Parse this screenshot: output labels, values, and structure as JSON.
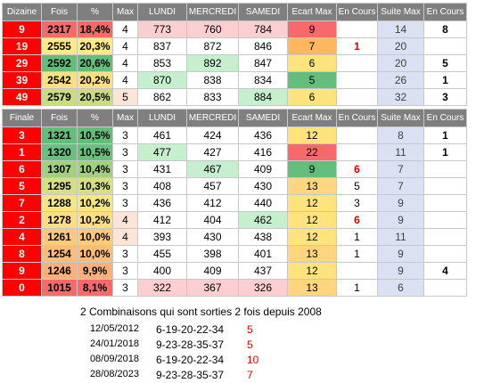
{
  "colors": {
    "key_red": "#ff0000",
    "suite_blue": "#d9e1f2",
    "header_grey": "#7f7f7f",
    "red_text": "#e00000"
  },
  "table1": {
    "headers": [
      "Dizaine",
      "Fois",
      "%",
      "Max",
      "LUNDI",
      "MERCREDI",
      "SAMEDI",
      "Ecart Max",
      "En Cours",
      "Suite Max",
      "En Cours"
    ],
    "rows": [
      {
        "key": "9",
        "fois": "2317",
        "pct": "18,4%",
        "max": "4",
        "lundi": "773",
        "mercredi": "760",
        "samedi": "784",
        "ecart": "9",
        "encours": "",
        "suite": "14",
        "encours2": "8",
        "bg": {
          "fois": "#f8696b",
          "pct": "#f8696b",
          "max": "#ffffff",
          "lundi": "#fbcfd0",
          "mercredi": "#fbcfd0",
          "samedi": "#fbcfd0",
          "ecart": "#f8696b"
        }
      },
      {
        "key": "19",
        "fois": "2555",
        "pct": "20,3%",
        "max": "4",
        "lundi": "837",
        "mercredi": "872",
        "samedi": "846",
        "ecart": "7",
        "encours": "1",
        "suite": "20",
        "encours2": "",
        "bg": {
          "fois": "#ffeb84",
          "pct": "#ffeb84",
          "max": "#ffffff",
          "lundi": "#ffffff",
          "mercredi": "#ffffff",
          "samedi": "#ffffff",
          "ecart": "#fdb85f"
        }
      },
      {
        "key": "29",
        "fois": "2592",
        "pct": "20,6%",
        "max": "4",
        "lundi": "853",
        "mercredi": "892",
        "samedi": "847",
        "ecart": "6",
        "encours": "",
        "suite": "20",
        "encours2": "5",
        "bg": {
          "fois": "#63be7b",
          "pct": "#63be7b",
          "max": "#ffffff",
          "lundi": "#ffffff",
          "mercredi": "#c6efce",
          "samedi": "#ffffff",
          "ecart": "#ffe47e"
        }
      },
      {
        "key": "39",
        "fois": "2542",
        "pct": "20,2%",
        "max": "4",
        "lundi": "870",
        "mercredi": "838",
        "samedi": "834",
        "ecart": "5",
        "encours": "",
        "suite": "26",
        "encours2": "1",
        "bg": {
          "fois": "#ffe081",
          "pct": "#ffe081",
          "max": "#ffffff",
          "lundi": "#c6efce",
          "mercredi": "#ffffff",
          "samedi": "#ffffff",
          "ecart": "#63be7b"
        }
      },
      {
        "key": "49",
        "fois": "2579",
        "pct": "20,5%",
        "max": "5",
        "lundi": "862",
        "mercredi": "833",
        "samedi": "884",
        "ecart": "6",
        "encours": "",
        "suite": "32",
        "encours2": "3",
        "bg": {
          "fois": "#c9dc81",
          "pct": "#c9dc81",
          "max": "#fce4d6",
          "lundi": "#ffffff",
          "mercredi": "#ffffff",
          "samedi": "#c6efce",
          "ecart": "#ffe47e"
        }
      }
    ]
  },
  "table2": {
    "headers": [
      "Finale",
      "Fois",
      "%",
      "Max",
      "LUNDI",
      "MERCREDI",
      "SAMEDI",
      "Ecart Max",
      "En Cours",
      "Suite Max",
      "En Cours"
    ],
    "rows": [
      {
        "key": "3",
        "fois": "1321",
        "pct": "10,5%",
        "max": "3",
        "lundi": "461",
        "mercredi": "424",
        "samedi": "436",
        "ecart": "12",
        "encours": "",
        "suite": "8",
        "encours2": "1",
        "bg": {
          "fois": "#63be7b",
          "pct": "#63be7b",
          "max": "#ffffff",
          "lundi": "#ffffff",
          "mercredi": "#ffffff",
          "samedi": "#ffffff",
          "ecart": "#ffe47e"
        }
      },
      {
        "key": "1",
        "fois": "1320",
        "pct": "10,5%",
        "max": "3",
        "lundi": "477",
        "mercredi": "427",
        "samedi": "416",
        "ecart": "22",
        "encours": "",
        "suite": "11",
        "encours2": "1",
        "bg": {
          "fois": "#6ac17d",
          "pct": "#6ac17d",
          "max": "#ffffff",
          "lundi": "#c6efce",
          "mercredi": "#ffffff",
          "samedi": "#ffffff",
          "ecart": "#f8696b"
        }
      },
      {
        "key": "6",
        "fois": "1307",
        "pct": "10,4%",
        "max": "3",
        "lundi": "431",
        "mercredi": "467",
        "samedi": "409",
        "ecart": "9",
        "encours": "6",
        "suite": "7",
        "encours2": "",
        "bg": {
          "fois": "#a1d07f",
          "pct": "#a1d07f",
          "max": "#ffffff",
          "lundi": "#ffffff",
          "mercredi": "#c6efce",
          "samedi": "#ffffff",
          "ecart": "#63be7b"
        }
      },
      {
        "key": "5",
        "fois": "1295",
        "pct": "10,3%",
        "max": "3",
        "lundi": "408",
        "mercredi": "457",
        "samedi": "430",
        "ecart": "13",
        "encours": "5",
        "suite": "7",
        "encours2": "",
        "bg": {
          "fois": "#d6df81",
          "pct": "#d6df81",
          "max": "#ffffff",
          "lundi": "#ffffff",
          "mercredi": "#ffffff",
          "samedi": "#ffffff",
          "ecart": "#ffd67f"
        }
      },
      {
        "key": "7",
        "fois": "1288",
        "pct": "10,2%",
        "max": "3",
        "lundi": "436",
        "mercredi": "412",
        "samedi": "440",
        "ecart": "12",
        "encours": "3",
        "suite": "9",
        "encours2": "",
        "bg": {
          "fois": "#f3e783",
          "pct": "#f3e783",
          "max": "#ffffff",
          "lundi": "#ffffff",
          "mercredi": "#ffffff",
          "samedi": "#ffffff",
          "ecart": "#ffe47e"
        }
      },
      {
        "key": "2",
        "fois": "1278",
        "pct": "10,2%",
        "max": "4",
        "lundi": "412",
        "mercredi": "404",
        "samedi": "462",
        "ecart": "12",
        "encours": "6",
        "suite": "9",
        "encours2": "",
        "bg": {
          "fois": "#fee082",
          "pct": "#fee082",
          "max": "#fce4d6",
          "lundi": "#ffffff",
          "mercredi": "#ffffff",
          "samedi": "#c6efce",
          "ecart": "#ffe47e"
        }
      },
      {
        "key": "4",
        "fois": "1261",
        "pct": "10,0%",
        "max": "4",
        "lundi": "393",
        "mercredi": "430",
        "samedi": "438",
        "ecart": "12",
        "encours": "1",
        "suite": "11",
        "encours2": "",
        "bg": {
          "fois": "#fdc97d",
          "pct": "#fdc97d",
          "max": "#fce4d6",
          "lundi": "#ffffff",
          "mercredi": "#ffffff",
          "samedi": "#ffffff",
          "ecart": "#ffe47e"
        }
      },
      {
        "key": "8",
        "fois": "1254",
        "pct": "10,0%",
        "max": "3",
        "lundi": "455",
        "mercredi": "398",
        "samedi": "401",
        "ecart": "13",
        "encours": "1",
        "suite": "9",
        "encours2": "",
        "bg": {
          "fois": "#fcbd7b",
          "pct": "#fcbd7b",
          "max": "#ffffff",
          "lundi": "#ffffff",
          "mercredi": "#ffffff",
          "samedi": "#ffffff",
          "ecart": "#ffd67f"
        }
      },
      {
        "key": "9",
        "fois": "1246",
        "pct": "9,9%",
        "max": "3",
        "lundi": "400",
        "mercredi": "409",
        "samedi": "437",
        "ecart": "12",
        "encours": "",
        "suite": "9",
        "encours2": "4",
        "bg": {
          "fois": "#fbb079",
          "pct": "#fbb079",
          "max": "#ffffff",
          "lundi": "#ffffff",
          "mercredi": "#ffffff",
          "samedi": "#ffffff",
          "ecart": "#ffe47e"
        }
      },
      {
        "key": "0",
        "fois": "1015",
        "pct": "8,1%",
        "max": "3",
        "lundi": "322",
        "mercredi": "367",
        "samedi": "326",
        "ecart": "13",
        "encours": "1",
        "suite": "6",
        "encours2": "",
        "bg": {
          "fois": "#f8696b",
          "pct": "#f8696b",
          "max": "#ffffff",
          "lundi": "#fbcfd0",
          "mercredi": "#fbcfd0",
          "samedi": "#fbcfd0",
          "ecart": "#ffd67f"
        }
      }
    ]
  },
  "combos": {
    "title": "2 Combinaisons qui sont sorties 2 fois depuis 2008",
    "rows": [
      {
        "date": "12/05/2012",
        "numbers": "6-19-20-22-34",
        "count": "5"
      },
      {
        "date": "24/01/2018",
        "numbers": "9-23-28-35-37",
        "count": "5"
      },
      {
        "date": "08/09/2018",
        "numbers": "6-19-20-22-34",
        "count": "10"
      },
      {
        "date": "28/08/2023",
        "numbers": "9-23-28-35-37",
        "count": "7"
      }
    ]
  }
}
